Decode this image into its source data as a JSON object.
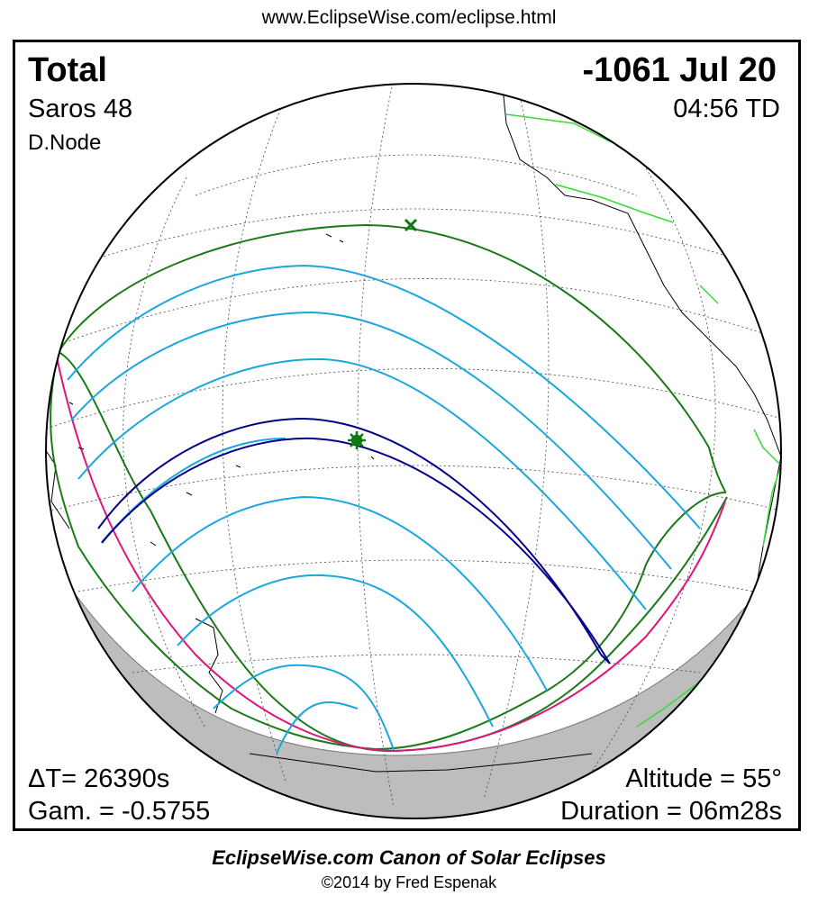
{
  "header": {
    "url": "www.EclipseWise.com/eclipse.html"
  },
  "eclipse": {
    "type": "Total",
    "date": "-1061 Jul 20",
    "saros": "Saros  48",
    "time": "04:56 TD",
    "node": "D.Node",
    "delta_t": "ΔT=  26390s",
    "gamma": "Gam. = -0.5755",
    "altitude": "Altitude = 55°",
    "duration": "Duration = 06m28s"
  },
  "footer": {
    "title": "EclipseWise.com Canon of Solar Eclipses",
    "copyright": "©2014 by Fred Espenak"
  },
  "colors": {
    "totality_path": "#00008b",
    "partial_contours": "#1aa7dd",
    "penumbra_limits": "#1a7a1a",
    "rise_set_limits": "#e0147a",
    "night_shading": "#bdbdbd",
    "borders": "#33dd33"
  },
  "markers": {
    "greatest_eclipse": "star-icon",
    "sub_solar_point": "x-icon"
  }
}
